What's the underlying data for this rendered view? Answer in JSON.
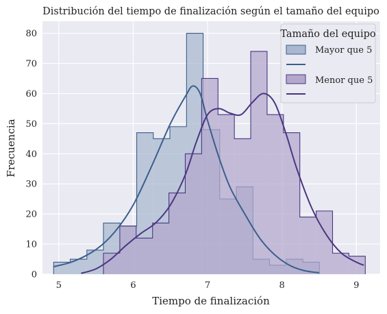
{
  "chart_data": {
    "type": "histogram",
    "title": "Distribución del tiempo de finalización según el tamaño del equipo",
    "xlabel": "Tiempo de finalización",
    "ylabel": "Frecuencia",
    "xlim": [
      4.78,
      9.32
    ],
    "ylim": [
      0,
      84
    ],
    "xticks": [
      5,
      6,
      7,
      8,
      9
    ],
    "yticks": [
      0,
      10,
      20,
      30,
      40,
      50,
      60,
      70,
      80
    ],
    "grid": true,
    "legend": {
      "title": "Tamaño del equipo",
      "placement": "top-right"
    },
    "series": [
      {
        "name": "Mayor que 5",
        "color": "#3a5e8c",
        "fill": "#a9b8cf",
        "bin_edges": [
          4.93,
          5.153,
          5.377,
          5.6,
          5.823,
          6.047,
          6.27,
          6.493,
          6.717,
          6.94,
          7.163,
          7.387,
          7.61,
          7.833,
          8.057,
          8.28,
          8.503
        ],
        "counts": [
          4,
          5,
          8,
          17,
          16,
          47,
          45,
          49,
          80,
          48,
          25,
          29,
          5,
          3,
          5,
          4
        ],
        "kde": [
          [
            4.93,
            2.5
          ],
          [
            5.2,
            4.3
          ],
          [
            5.5,
            8.2
          ],
          [
            5.75,
            14
          ],
          [
            6.0,
            23
          ],
          [
            6.25,
            36
          ],
          [
            6.5,
            50
          ],
          [
            6.7,
            59
          ],
          [
            6.8,
            62.5
          ],
          [
            6.9,
            60
          ],
          [
            7.0,
            51
          ],
          [
            7.15,
            39
          ],
          [
            7.3,
            29
          ],
          [
            7.5,
            20
          ],
          [
            7.7,
            12
          ],
          [
            7.9,
            6.5
          ],
          [
            8.1,
            3
          ],
          [
            8.3,
            1.2
          ],
          [
            8.5,
            0.5
          ]
        ]
      },
      {
        "name": "Menor que 5",
        "color": "#4a3580",
        "fill": "#b3a8cc",
        "bin_edges": [
          5.6,
          5.82,
          6.04,
          6.26,
          6.48,
          6.7,
          6.92,
          7.14,
          7.36,
          7.58,
          7.8,
          8.02,
          8.24,
          8.46,
          8.68,
          8.9,
          9.12
        ],
        "counts": [
          7,
          16,
          12,
          17,
          27,
          40,
          65,
          53,
          45,
          74,
          53,
          47,
          19,
          21,
          7,
          6
        ],
        "kde": [
          [
            5.3,
            0.3
          ],
          [
            5.5,
            1.8
          ],
          [
            5.7,
            5
          ],
          [
            5.9,
            9.5
          ],
          [
            6.1,
            13.5
          ],
          [
            6.3,
            17
          ],
          [
            6.5,
            23
          ],
          [
            6.7,
            33
          ],
          [
            6.85,
            44
          ],
          [
            7.0,
            53
          ],
          [
            7.15,
            55
          ],
          [
            7.3,
            53.5
          ],
          [
            7.45,
            53
          ],
          [
            7.6,
            57
          ],
          [
            7.75,
            60
          ],
          [
            7.9,
            57
          ],
          [
            8.05,
            47
          ],
          [
            8.2,
            35
          ],
          [
            8.4,
            22
          ],
          [
            8.6,
            13
          ],
          [
            8.8,
            7
          ],
          [
            9.0,
            4
          ],
          [
            9.1,
            3
          ]
        ]
      }
    ]
  }
}
